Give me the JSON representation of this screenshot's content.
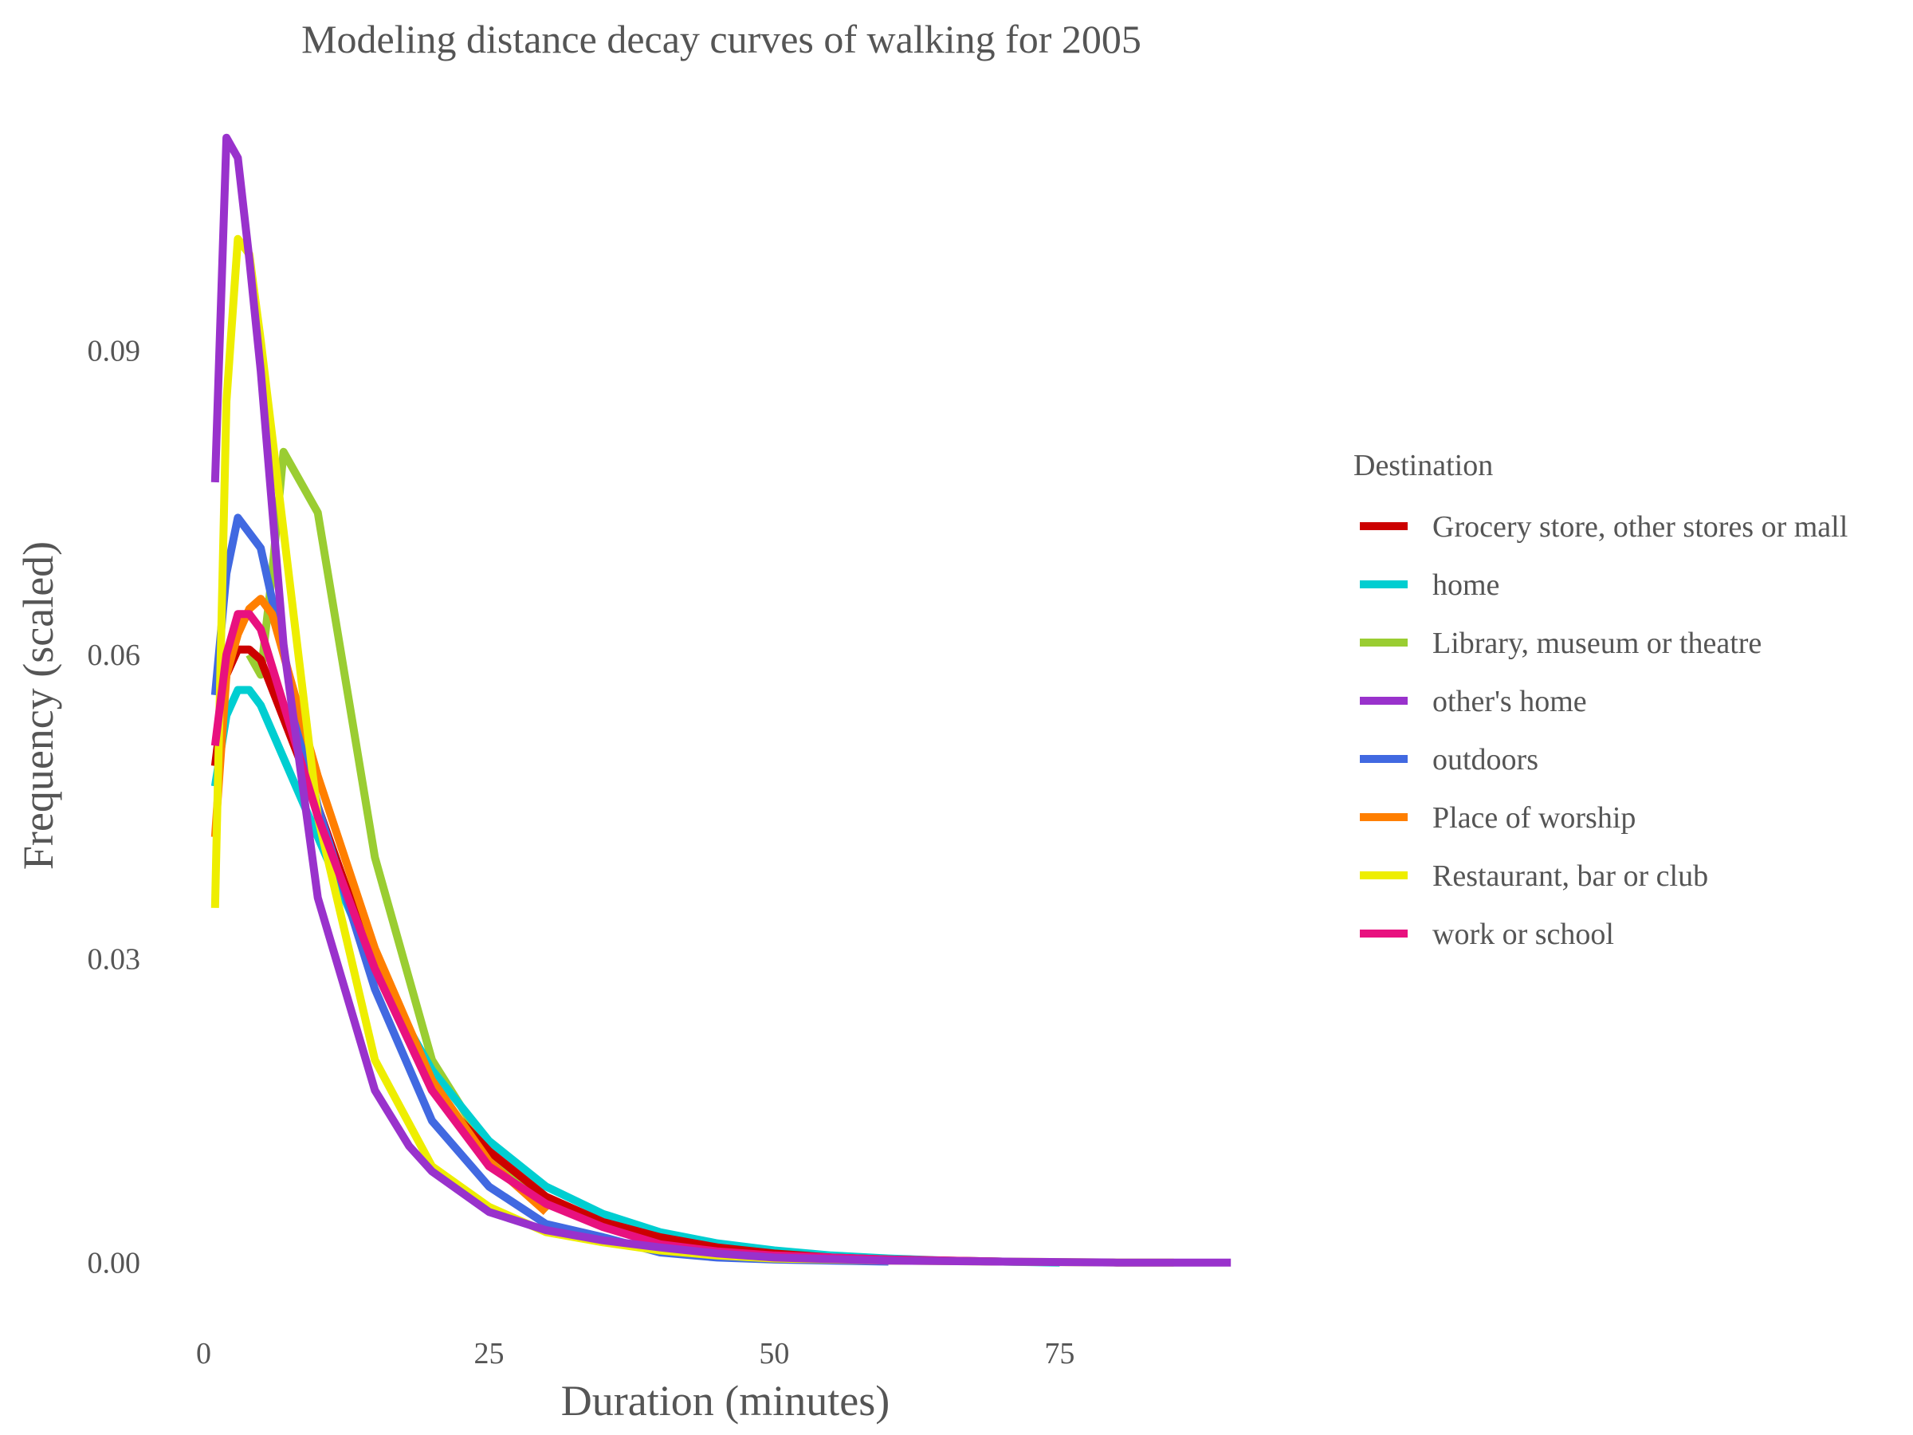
{
  "chart_data": {
    "type": "line",
    "title": "Modeling distance decay curves of walking for 2005",
    "xlabel": "Duration (minutes)",
    "ylabel": "Frequency (scaled)",
    "xlim": [
      -1.5,
      92.5
    ],
    "ylim": [
      -0.006,
      0.112
    ],
    "x_ticks": [
      0,
      25,
      50,
      75
    ],
    "x_tick_labels": [
      "0",
      "25",
      "50",
      "75"
    ],
    "y_ticks": [
      0,
      0.03,
      0.06,
      0.09
    ],
    "y_tick_labels": [
      "0.00",
      "0.03",
      "0.06",
      "0.09"
    ],
    "grid": false,
    "legend": {
      "title": "Destination",
      "position": "right"
    },
    "series": [
      {
        "name": "Library, museum or theatre",
        "color": "#9ACD32",
        "points": [
          [
            4,
            0.06
          ],
          [
            5,
            0.058
          ],
          [
            6,
            0.068
          ],
          [
            7,
            0.08
          ],
          [
            10,
            0.074
          ],
          [
            15,
            0.04
          ],
          [
            20,
            0.02
          ],
          [
            25,
            0.011
          ],
          [
            30,
            0.005
          ]
        ]
      },
      {
        "name": "home",
        "color": "#00CED1",
        "points": [
          [
            1,
            0.047
          ],
          [
            2,
            0.054
          ],
          [
            3,
            0.0565
          ],
          [
            4,
            0.0565
          ],
          [
            5,
            0.055
          ],
          [
            10,
            0.042
          ],
          [
            15,
            0.029
          ],
          [
            20,
            0.019
          ],
          [
            25,
            0.012
          ],
          [
            30,
            0.0075
          ],
          [
            35,
            0.0048
          ],
          [
            40,
            0.003
          ],
          [
            45,
            0.0019
          ],
          [
            50,
            0.0012
          ],
          [
            55,
            0.0007
          ],
          [
            60,
            0.0004
          ],
          [
            65,
            0.0002
          ],
          [
            70,
            0.0001
          ],
          [
            75,
            0.0
          ]
        ]
      },
      {
        "name": "Grocery store, other stores or mall",
        "color": "#CC0000",
        "points": [
          [
            1,
            0.049
          ],
          [
            2,
            0.058
          ],
          [
            3,
            0.0605
          ],
          [
            4,
            0.0605
          ],
          [
            5,
            0.0595
          ],
          [
            10,
            0.045
          ],
          [
            15,
            0.029
          ],
          [
            20,
            0.017
          ],
          [
            25,
            0.011
          ],
          [
            30,
            0.0065
          ],
          [
            35,
            0.004
          ],
          [
            40,
            0.0025
          ],
          [
            45,
            0.0015
          ],
          [
            50,
            0.0009
          ],
          [
            55,
            0.0005
          ],
          [
            60,
            0.0003
          ],
          [
            65,
            0.0002
          ],
          [
            70,
            0.0001
          ]
        ]
      },
      {
        "name": "outdoors",
        "color": "#4169E1",
        "points": [
          [
            1,
            0.056
          ],
          [
            2,
            0.068
          ],
          [
            3,
            0.0735
          ],
          [
            4,
            0.072
          ],
          [
            5,
            0.0705
          ],
          [
            10,
            0.045
          ],
          [
            15,
            0.027
          ],
          [
            20,
            0.014
          ],
          [
            25,
            0.0075
          ],
          [
            30,
            0.0038
          ],
          [
            35,
            0.0025
          ],
          [
            40,
            0.001
          ],
          [
            45,
            0.0005
          ],
          [
            50,
            0.0003
          ],
          [
            55,
            0.0002
          ],
          [
            60,
            0.0001
          ]
        ]
      },
      {
        "name": "Place of worship",
        "color": "#FF7F00",
        "points": [
          [
            1,
            0.042
          ],
          [
            2,
            0.058
          ],
          [
            3,
            0.062
          ],
          [
            4,
            0.0645
          ],
          [
            5,
            0.0655
          ],
          [
            6,
            0.064
          ],
          [
            10,
            0.048
          ],
          [
            15,
            0.031
          ],
          [
            20,
            0.018
          ],
          [
            25,
            0.01
          ],
          [
            30,
            0.005
          ]
        ]
      },
      {
        "name": "Restaurant, bar or club",
        "color": "#EEEE00",
        "points": [
          [
            1,
            0.035
          ],
          [
            2,
            0.085
          ],
          [
            3,
            0.101
          ],
          [
            4,
            0.0995
          ],
          [
            5,
            0.091
          ],
          [
            10,
            0.044
          ],
          [
            15,
            0.02
          ],
          [
            20,
            0.0095
          ],
          [
            25,
            0.0055
          ],
          [
            30,
            0.003
          ],
          [
            35,
            0.002
          ],
          [
            40,
            0.0012
          ],
          [
            45,
            0.0007
          ],
          [
            50,
            0.0004
          ],
          [
            60,
            0.0002
          ],
          [
            70,
            0.0001
          ],
          [
            80,
            0.0
          ],
          [
            85,
            0.0
          ]
        ]
      },
      {
        "name": "work or school",
        "color": "#E8117F",
        "points": [
          [
            1,
            0.051
          ],
          [
            2,
            0.06
          ],
          [
            3,
            0.064
          ],
          [
            4,
            0.064
          ],
          [
            5,
            0.0625
          ],
          [
            10,
            0.044
          ],
          [
            15,
            0.029
          ],
          [
            20,
            0.017
          ],
          [
            25,
            0.0095
          ],
          [
            30,
            0.0058
          ],
          [
            35,
            0.0035
          ],
          [
            40,
            0.0018
          ],
          [
            45,
            0.0011
          ],
          [
            50,
            0.0007
          ],
          [
            60,
            0.0003
          ],
          [
            70,
            0.0001
          ]
        ]
      },
      {
        "name": "other's home",
        "color": "#9932CC",
        "points": [
          [
            1,
            0.077
          ],
          [
            2,
            0.111
          ],
          [
            3,
            0.109
          ],
          [
            4,
            0.099
          ],
          [
            5,
            0.088
          ],
          [
            7,
            0.061
          ],
          [
            10,
            0.036
          ],
          [
            15,
            0.017
          ],
          [
            18,
            0.0115
          ],
          [
            20,
            0.009
          ],
          [
            25,
            0.005
          ],
          [
            30,
            0.0032
          ],
          [
            35,
            0.0022
          ],
          [
            40,
            0.0015
          ],
          [
            45,
            0.0009
          ],
          [
            50,
            0.0005
          ],
          [
            60,
            0.0002
          ],
          [
            70,
            0.0001
          ],
          [
            80,
            0.0
          ],
          [
            90,
            0.0
          ]
        ]
      }
    ],
    "legend_order": [
      "Grocery store, other stores or mall",
      "home",
      "Library, museum or theatre",
      "other's home",
      "outdoors",
      "Place of worship",
      "Restaurant, bar or club",
      "work or school"
    ]
  }
}
